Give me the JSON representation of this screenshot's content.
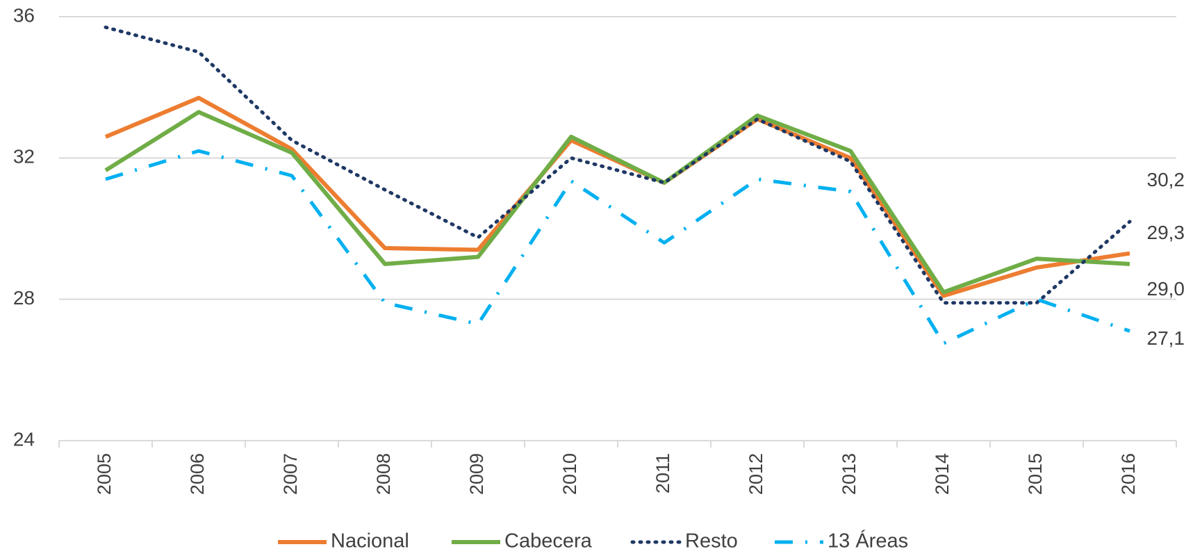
{
  "chart_data": {
    "type": "line",
    "categories": [
      "2005",
      "2006",
      "2007",
      "2008",
      "2009",
      "2010",
      "2011",
      "2012",
      "2013",
      "2014",
      "2015",
      "2016"
    ],
    "ylim": [
      24,
      36
    ],
    "yticks": [
      24,
      28,
      32,
      36
    ],
    "grid": true,
    "legend": "bottom",
    "series": [
      {
        "name": "Nacional",
        "color": "#ED7D31",
        "dash": "solid",
        "values": [
          32.6,
          33.7,
          32.25,
          29.45,
          29.4,
          32.5,
          31.3,
          33.1,
          32.0,
          28.1,
          28.9,
          29.3
        ],
        "value_labels": [
          null,
          null,
          null,
          null,
          null,
          null,
          null,
          null,
          null,
          null,
          null,
          "29,3"
        ]
      },
      {
        "name": "Cabecera",
        "color": "#70AD47",
        "dash": "solid",
        "values": [
          31.65,
          33.3,
          32.15,
          29.0,
          29.2,
          32.6,
          31.3,
          33.2,
          32.2,
          28.2,
          29.15,
          29.0
        ],
        "value_labels": [
          null,
          null,
          null,
          null,
          null,
          null,
          null,
          null,
          null,
          null,
          null,
          "29,0"
        ]
      },
      {
        "name": "Resto",
        "color": "#1F3864",
        "dash": "dotted",
        "values": [
          35.7,
          35.0,
          32.5,
          31.1,
          29.75,
          32.0,
          31.3,
          33.1,
          31.9,
          27.9,
          27.9,
          30.2
        ],
        "value_labels": [
          null,
          null,
          null,
          null,
          null,
          null,
          null,
          null,
          null,
          null,
          null,
          "30,2"
        ]
      },
      {
        "name": "13 Áreas",
        "color": "#00B0F0",
        "dash": "dashdot",
        "values": [
          31.4,
          32.2,
          31.5,
          27.9,
          27.3,
          31.35,
          29.6,
          31.4,
          31.05,
          26.75,
          28.0,
          27.1
        ],
        "value_labels": [
          null,
          null,
          null,
          null,
          null,
          null,
          null,
          null,
          null,
          null,
          null,
          "27,1"
        ]
      }
    ]
  }
}
